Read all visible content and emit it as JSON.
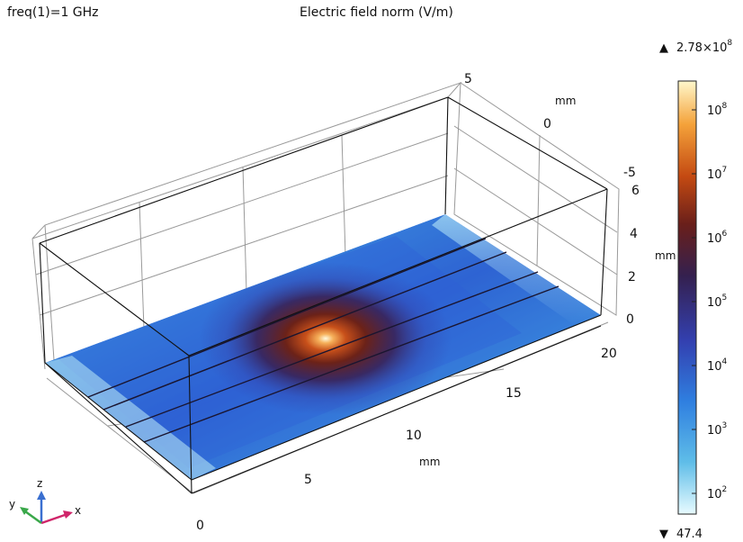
{
  "header": {
    "parameter_label": "freq(1)=1 GHz",
    "plot_title": "Electric field norm (V/m)"
  },
  "axes": {
    "x": {
      "ticks": [
        "0",
        "5",
        "10",
        "15",
        "20"
      ],
      "unit": "mm"
    },
    "y": {
      "ticks": [
        "5",
        "0",
        "-5"
      ],
      "unit": "mm"
    },
    "z": {
      "ticks": [
        "6",
        "4",
        "2",
        "0"
      ],
      "unit": "mm"
    }
  },
  "colorbar": {
    "max_label": "2.78×10",
    "max_exp": "8",
    "min_label": "47.4",
    "max_marker": "▲",
    "min_marker": "▼",
    "ticks": [
      {
        "base": "10",
        "exp": "8"
      },
      {
        "base": "10",
        "exp": "7"
      },
      {
        "base": "10",
        "exp": "6"
      },
      {
        "base": "10",
        "exp": "5"
      },
      {
        "base": "10",
        "exp": "4"
      },
      {
        "base": "10",
        "exp": "3"
      },
      {
        "base": "10",
        "exp": "2"
      }
    ],
    "colors": [
      "#e8fbff",
      "#5fbde8",
      "#2f7fe0",
      "#3340b0",
      "#34204f",
      "#6a1f1a",
      "#c44a12",
      "#f4a23a",
      "#fff8cc"
    ]
  },
  "triad": {
    "x_label": "x",
    "y_label": "y",
    "z_label": "z",
    "x_color": "#d0256a",
    "y_color": "#3aa84a",
    "z_color": "#3a6fd0"
  }
}
